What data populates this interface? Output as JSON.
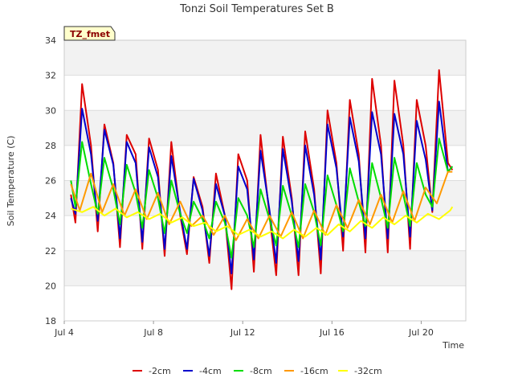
{
  "chart_data": {
    "type": "line",
    "title": "Tonzi Soil Temperatures Set B",
    "xlabel": "Time",
    "ylabel": "Soil Temperature (C)",
    "badge": "TZ_fmet",
    "ylim": [
      18,
      34
    ],
    "xlim": [
      0,
      18
    ],
    "x_unit": "days since Jul 4",
    "x_ticks": [
      {
        "x": 0,
        "label": "Jul 4"
      },
      {
        "x": 4,
        "label": "Jul 8"
      },
      {
        "x": 8,
        "label": "Jul 12"
      },
      {
        "x": 12,
        "label": "Jul 16"
      },
      {
        "x": 16,
        "label": "Jul 20"
      }
    ],
    "y_ticks": [
      18,
      20,
      22,
      24,
      26,
      28,
      30,
      32,
      34
    ],
    "grid": true,
    "legend_position": "bottom",
    "series": [
      {
        "name": "-2cm",
        "color": "#dd0000",
        "x": [
          0.3,
          0.5,
          0.8,
          1.2,
          1.5,
          1.8,
          2.2,
          2.5,
          2.8,
          3.2,
          3.5,
          3.8,
          4.2,
          4.5,
          4.8,
          5.2,
          5.5,
          5.8,
          6.2,
          6.5,
          6.8,
          7.2,
          7.5,
          7.8,
          8.2,
          8.5,
          8.8,
          9.2,
          9.5,
          9.8,
          10.2,
          10.5,
          10.8,
          11.2,
          11.5,
          11.8,
          12.2,
          12.5,
          12.8,
          13.2,
          13.5,
          13.8,
          14.2,
          14.5,
          14.8,
          15.2,
          15.5,
          15.8,
          16.2,
          16.5,
          16.8,
          17.2,
          17.4
        ],
        "y": [
          25.2,
          23.6,
          31.5,
          28.0,
          23.1,
          29.2,
          27.0,
          22.2,
          28.6,
          27.5,
          22.1,
          28.4,
          26.6,
          21.7,
          28.2,
          24.0,
          21.8,
          26.2,
          24.5,
          21.3,
          26.4,
          24.0,
          19.8,
          27.5,
          26.0,
          20.8,
          28.6,
          24.0,
          20.6,
          28.5,
          25.0,
          20.6,
          28.8,
          25.5,
          20.7,
          30.0,
          27.0,
          22.0,
          30.6,
          27.5,
          21.9,
          31.8,
          28.0,
          21.9,
          31.7,
          28.0,
          22.1,
          30.6,
          28.0,
          24.2,
          32.3,
          27.0,
          26.6
        ]
      },
      {
        "name": "-4cm",
        "color": "#0000cc",
        "x": [
          0.3,
          0.5,
          0.8,
          1.2,
          1.5,
          1.8,
          2.2,
          2.5,
          2.8,
          3.2,
          3.5,
          3.8,
          4.2,
          4.5,
          4.8,
          5.2,
          5.5,
          5.8,
          6.2,
          6.5,
          6.8,
          7.2,
          7.5,
          7.8,
          8.2,
          8.5,
          8.8,
          9.2,
          9.5,
          9.8,
          10.2,
          10.5,
          10.8,
          11.2,
          11.5,
          11.8,
          12.2,
          12.5,
          12.8,
          13.2,
          13.5,
          13.8,
          14.2,
          14.5,
          14.8,
          15.2,
          15.5,
          15.8,
          16.2,
          16.5,
          16.8,
          17.2,
          17.4
        ],
        "y": [
          25.0,
          24.1,
          30.1,
          27.5,
          23.7,
          28.9,
          26.9,
          22.7,
          28.2,
          27.0,
          22.5,
          27.9,
          26.2,
          22.1,
          27.4,
          24.2,
          22.1,
          26.1,
          24.3,
          21.7,
          25.8,
          24.0,
          20.7,
          26.8,
          25.5,
          21.5,
          27.7,
          24.3,
          21.3,
          27.8,
          24.8,
          21.4,
          28.0,
          25.2,
          21.5,
          29.2,
          26.7,
          22.8,
          29.6,
          27.1,
          22.7,
          29.9,
          27.5,
          22.7,
          29.8,
          27.5,
          22.8,
          29.4,
          27.2,
          24.3,
          30.5,
          26.5,
          26.8
        ]
      },
      {
        "name": "-8cm",
        "color": "#00dd00",
        "x": [
          0.3,
          0.5,
          0.8,
          1.2,
          1.5,
          1.8,
          2.2,
          2.5,
          2.8,
          3.2,
          3.5,
          3.8,
          4.2,
          4.5,
          4.8,
          5.2,
          5.5,
          5.8,
          6.2,
          6.5,
          6.8,
          7.2,
          7.5,
          7.8,
          8.2,
          8.5,
          8.8,
          9.2,
          9.5,
          9.8,
          10.2,
          10.5,
          10.8,
          11.2,
          11.5,
          11.8,
          12.2,
          12.5,
          12.8,
          13.2,
          13.5,
          13.8,
          14.2,
          14.5,
          14.8,
          15.2,
          15.5,
          15.8,
          16.2,
          16.5,
          16.8,
          17.2,
          17.4
        ],
        "y": [
          26.0,
          24.5,
          28.2,
          25.8,
          24.1,
          27.3,
          25.5,
          23.5,
          26.9,
          25.3,
          23.3,
          26.6,
          25.0,
          23.0,
          26.0,
          24.1,
          23.0,
          24.8,
          23.8,
          22.7,
          24.8,
          23.6,
          21.6,
          25.0,
          24.0,
          22.2,
          25.5,
          23.8,
          22.3,
          25.7,
          24.0,
          22.2,
          25.8,
          24.2,
          22.3,
          26.3,
          24.6,
          23.1,
          26.7,
          24.8,
          23.4,
          27.0,
          25.0,
          23.3,
          27.3,
          25.2,
          23.4,
          27.0,
          25.2,
          24.5,
          28.4,
          26.5,
          26.8
        ]
      },
      {
        "name": "-16cm",
        "color": "#ff9900",
        "x": [
          0.3,
          0.7,
          1.2,
          1.7,
          2.2,
          2.7,
          3.2,
          3.7,
          4.2,
          4.7,
          5.2,
          5.7,
          6.2,
          6.7,
          7.2,
          7.7,
          8.2,
          8.7,
          9.2,
          9.7,
          10.2,
          10.7,
          11.2,
          11.7,
          12.2,
          12.7,
          13.2,
          13.7,
          14.2,
          14.7,
          15.2,
          15.7,
          16.2,
          16.7,
          17.2,
          17.4
        ],
        "y": [
          25.8,
          24.3,
          26.4,
          24.2,
          25.8,
          24.0,
          25.5,
          23.8,
          25.3,
          23.5,
          24.8,
          23.4,
          24.0,
          22.9,
          24.0,
          22.6,
          23.8,
          22.7,
          24.0,
          22.8,
          24.2,
          22.7,
          24.3,
          22.9,
          24.6,
          23.3,
          24.9,
          23.5,
          25.2,
          23.6,
          25.4,
          23.7,
          25.6,
          24.7,
          26.5,
          26.5
        ]
      },
      {
        "name": "-32cm",
        "color": "#ffff00",
        "x": [
          0.3,
          0.8,
          1.3,
          1.8,
          2.3,
          2.8,
          3.3,
          3.8,
          4.3,
          4.8,
          5.3,
          5.8,
          6.3,
          6.8,
          7.3,
          7.8,
          8.3,
          8.8,
          9.3,
          9.8,
          10.3,
          10.8,
          11.3,
          11.8,
          12.3,
          12.8,
          13.3,
          13.8,
          14.3,
          14.8,
          15.3,
          15.8,
          16.3,
          16.8,
          17.3,
          17.4
        ],
        "y": [
          24.4,
          24.2,
          24.5,
          24.0,
          24.4,
          23.9,
          24.2,
          23.8,
          24.1,
          23.6,
          23.9,
          23.4,
          23.6,
          23.1,
          23.4,
          22.9,
          23.2,
          22.8,
          23.1,
          22.7,
          23.2,
          22.8,
          23.3,
          22.9,
          23.5,
          23.1,
          23.7,
          23.3,
          23.9,
          23.5,
          24.0,
          23.6,
          24.1,
          23.8,
          24.3,
          24.5
        ]
      }
    ]
  }
}
